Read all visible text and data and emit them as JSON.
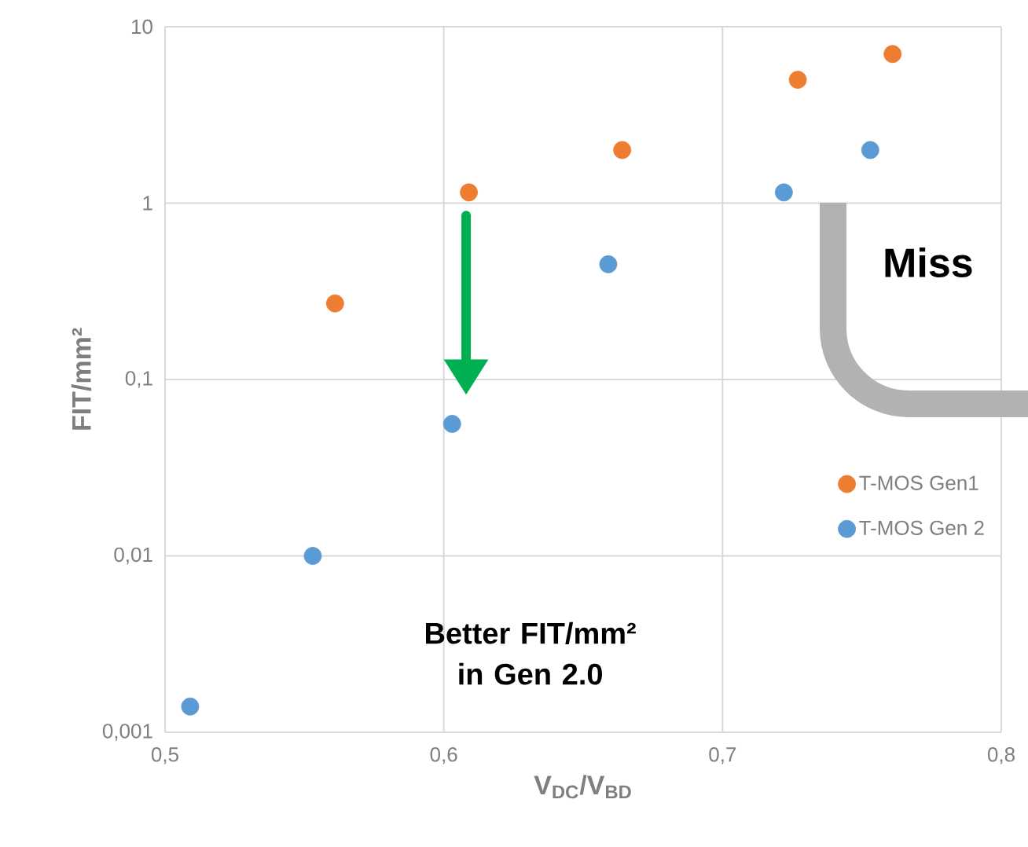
{
  "chart_data": {
    "type": "scatter",
    "xlabel": "V$_{DC}$/V$_{BD}$",
    "ylabel": "FIT/mm²",
    "log": "y",
    "grid": true,
    "legend": "right",
    "marker": "circle",
    "xlim": [
      0.5,
      0.8
    ],
    "ylim": [
      0.001,
      10
    ],
    "xticks": [
      {
        "value": 0.5,
        "label": "0,5"
      },
      {
        "value": 0.6,
        "label": "0,6"
      },
      {
        "value": 0.7,
        "label": "0,7"
      },
      {
        "value": 0.8,
        "label": "0,8"
      }
    ],
    "yticks": [
      {
        "value": 0.001,
        "label": "0,001"
      },
      {
        "value": 0.01,
        "label": "0,01"
      },
      {
        "value": 0.1,
        "label": "0,1"
      },
      1,
      10
    ],
    "series": [
      {
        "name": "T-MOS Gen1",
        "color": "#ed7d31",
        "x": [
          0.561,
          0.609,
          0.664,
          0.727,
          0.761
        ],
        "values": [
          0.27,
          1.15,
          2.0,
          5.0,
          7.0
        ]
      },
      {
        "name": "T-MOS Gen 2",
        "color": "#5b9bd5",
        "x": [
          0.509,
          0.553,
          0.603,
          0.659,
          0.722,
          0.753
        ],
        "values": [
          0.0014,
          0.01,
          0.056,
          0.45,
          1.15,
          2.0
        ]
      }
    ],
    "annotations": [
      "Better FIT/mm² in Gen 2.0",
      "Miss"
    ]
  }
}
